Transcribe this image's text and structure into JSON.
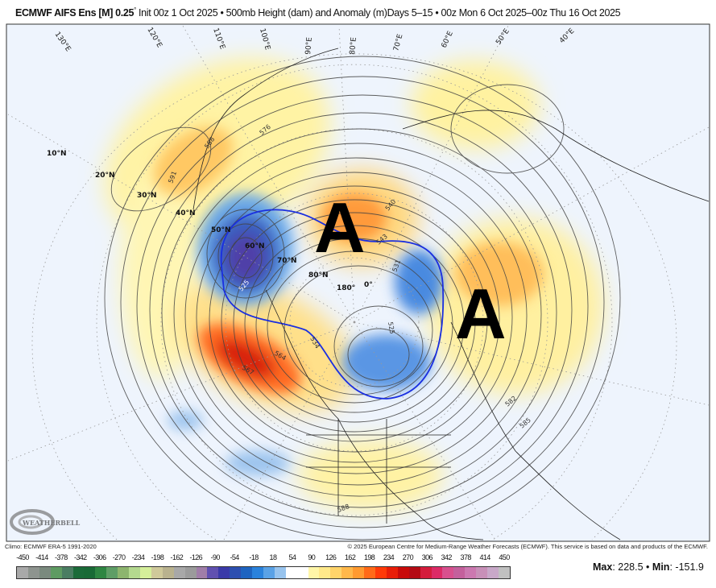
{
  "header": {
    "model": "ECMWF AIFS Ens [M] 0.25",
    "degree": "°",
    "init": "Init 00z 1 Oct 2025",
    "field": "500mb Height (dam) and Anomaly (m)",
    "days": "Days 5–15",
    "valid": "00z Mon 6 Oct 2025–00z Thu 16 Oct 2025",
    "sep": "•"
  },
  "map": {
    "background": "#eef4fd",
    "latitude_labels": [
      "10°N",
      "20°N",
      "30°N",
      "40°N",
      "50°N",
      "60°N",
      "70°N",
      "80°N"
    ],
    "longitude_labels": [
      "130°E",
      "120°E",
      "110°E",
      "100°E",
      "90°E",
      "80°E",
      "70°E",
      "60°E",
      "50°E",
      "40°E"
    ],
    "meridian_labels": [
      "180°",
      "0°"
    ],
    "contour_labels": [
      "591",
      "588",
      "576",
      "567",
      "564",
      "525",
      "531",
      "540",
      "543",
      "534",
      "525",
      "582",
      "585",
      "588"
    ],
    "annotations": [
      "A",
      "A"
    ],
    "highlight_contour_color": "#1a2fe0",
    "logo_text": "WEATHERBELL"
  },
  "credits": {
    "climo": "Climo: ECMWF ERA-5 1991-2020",
    "copyright": "© 2025 European Centre for Medium-Range Weather Forecasts (ECMWF). This service is based on data and products of the ECMWF."
  },
  "colorbar": {
    "labels": [
      "-450",
      "-414",
      "-378",
      "-342",
      "-306",
      "-270",
      "-234",
      "-198",
      "-162",
      "-126",
      "-90",
      "-54",
      "-18",
      "18",
      "54",
      "90",
      "126",
      "162",
      "198",
      "234",
      "270",
      "306",
      "342",
      "378",
      "414",
      "450"
    ],
    "colors": [
      "#a9a9a9",
      "#8e948f",
      "#7a8a7e",
      "#5e9b62",
      "#4a7d62",
      "#1b6b39",
      "#196a36",
      "#2e8642",
      "#5e9e66",
      "#8db56e",
      "#b4d98f",
      "#d5ef9a",
      "#cfc99a",
      "#b9b28e",
      "#a8a8a8",
      "#9b9b9b",
      "#a07ea8",
      "#6050b0",
      "#3a3aa8",
      "#2c4fb0",
      "#1e64c0",
      "#2a82dc",
      "#5aa2e6",
      "#98c4ee",
      "#ffffff",
      "#ffffff",
      "#fff6a8",
      "#ffe98a",
      "#ffd46a",
      "#ffb84a",
      "#ff9a30",
      "#ff6a18",
      "#ff3a08",
      "#e81e08",
      "#c80a0a",
      "#b40a14",
      "#d41c3c",
      "#dc2a66",
      "#d8508e",
      "#c4609c",
      "#cc78b0",
      "#c890b8",
      "#c8a8c8",
      "#c0c0c0"
    ],
    "max_label": "Max",
    "max_value": "228.5",
    "min_label": "Min",
    "min_value": "-151.9",
    "sep": "•"
  }
}
